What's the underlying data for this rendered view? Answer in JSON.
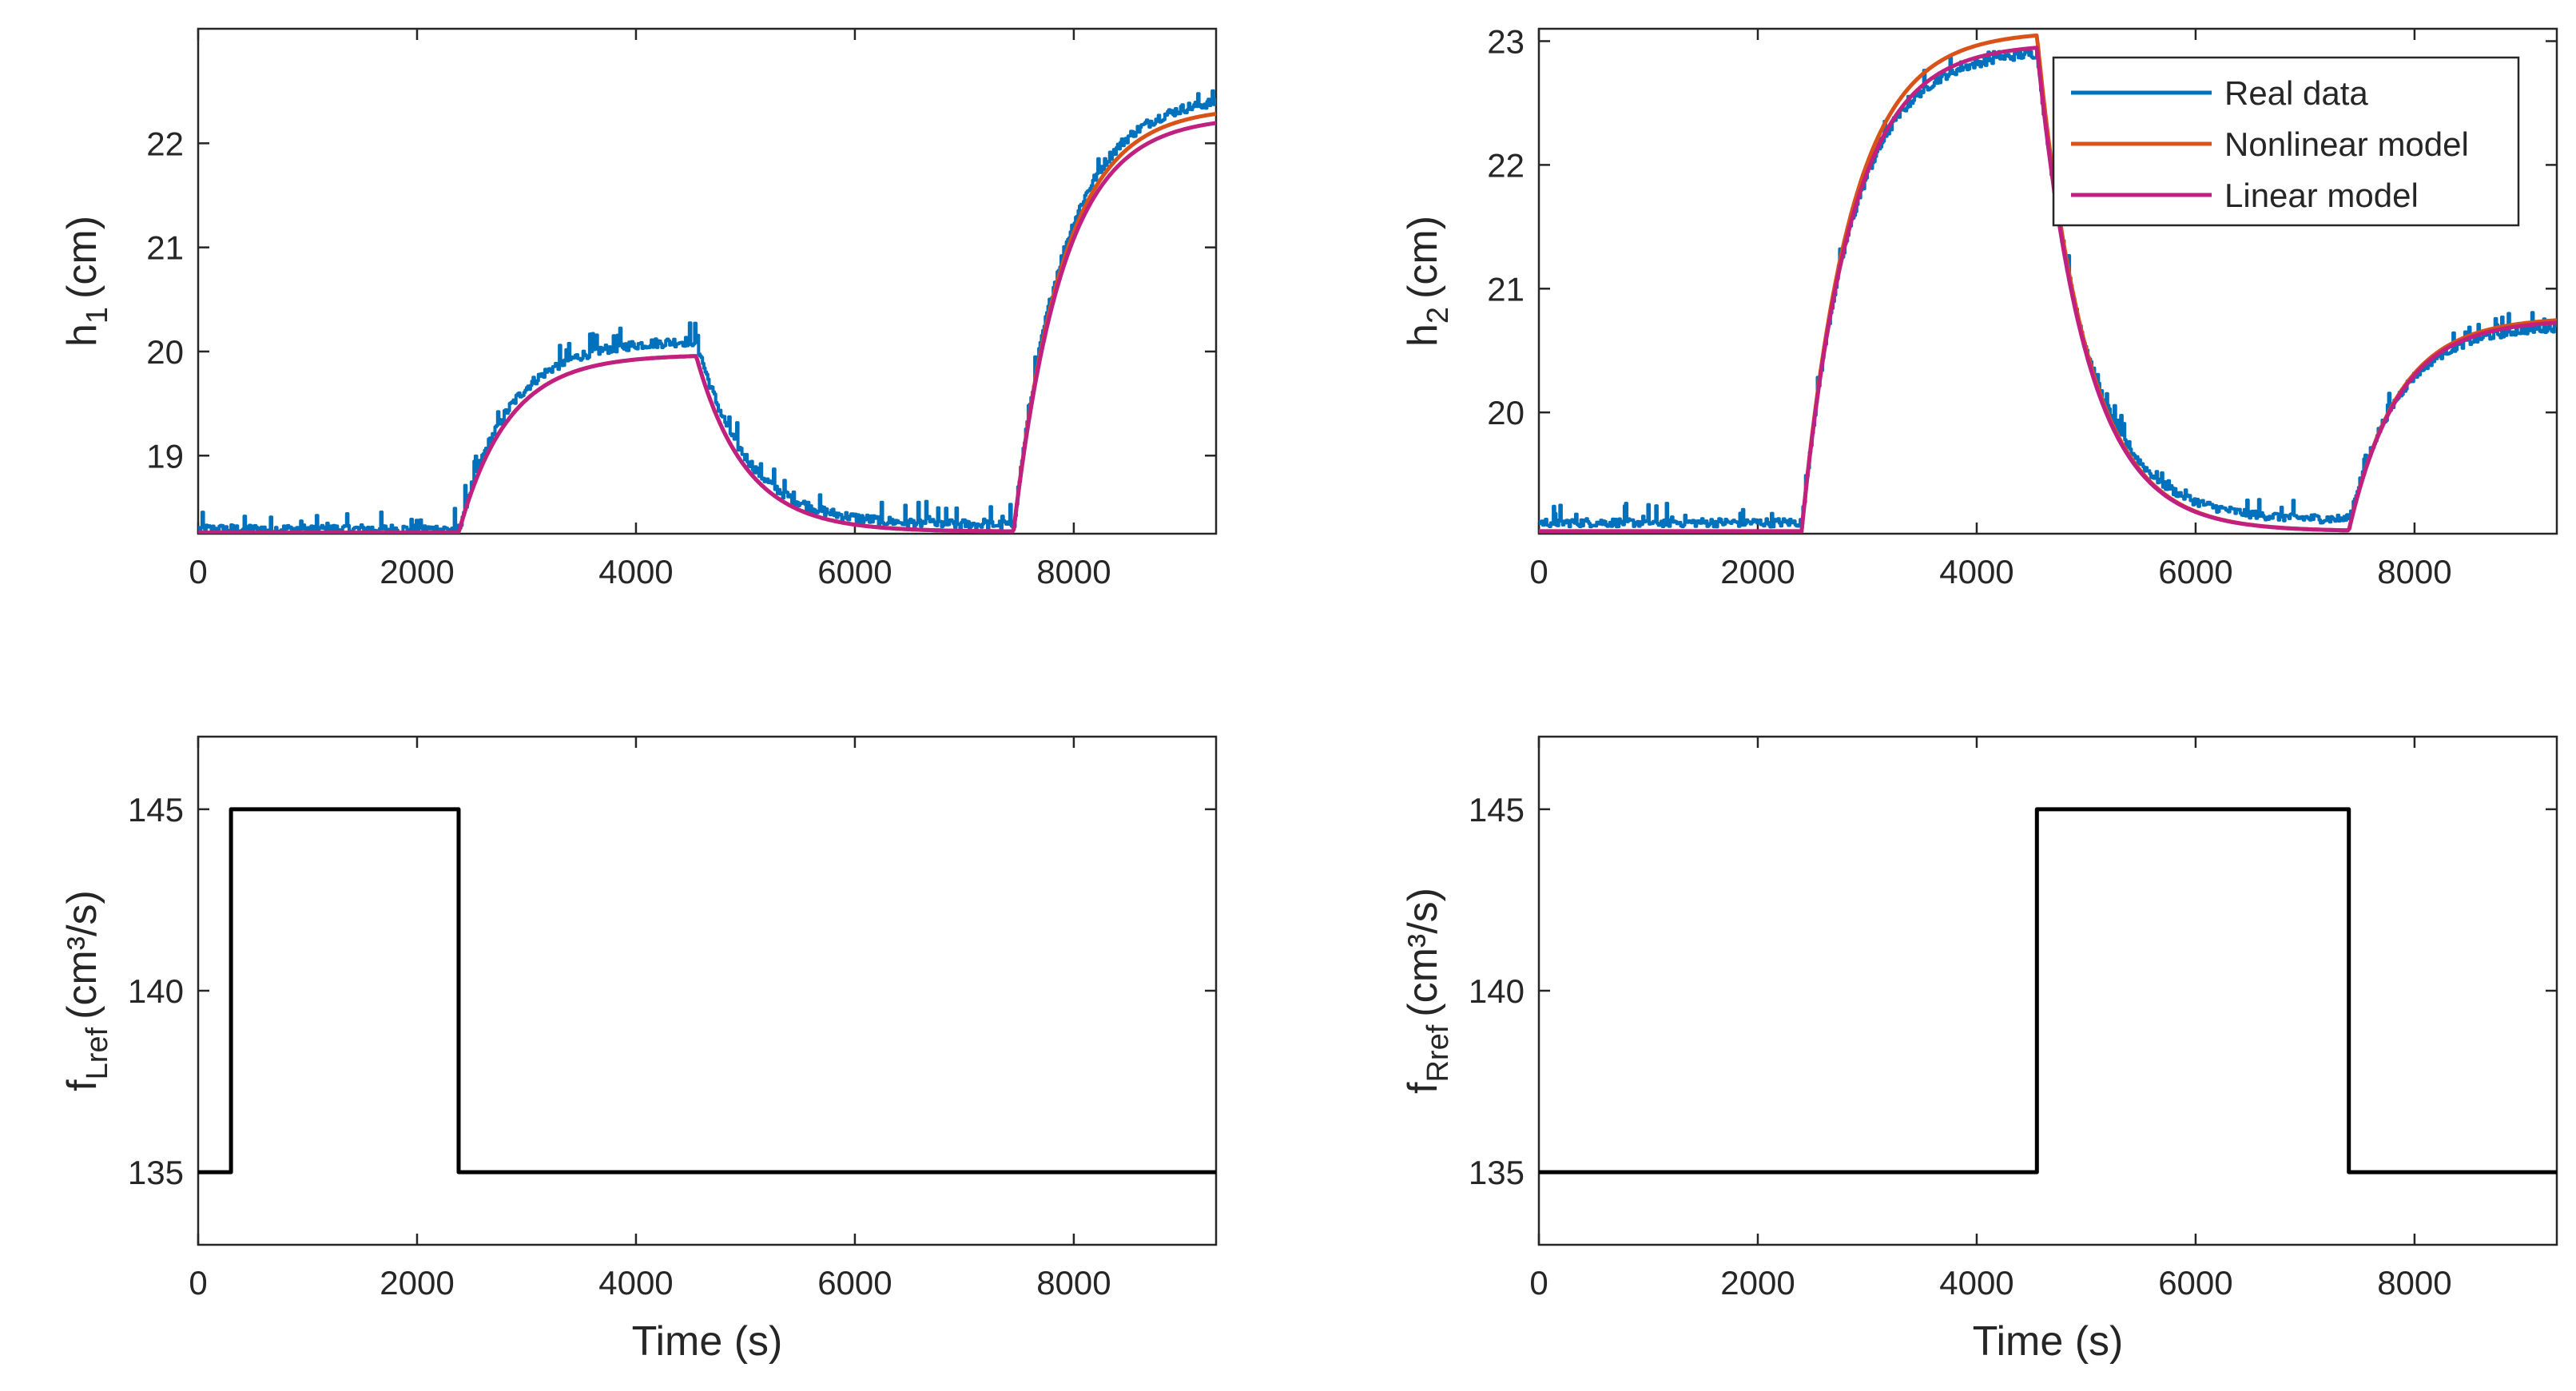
{
  "chart_data": [
    {
      "id": "h1",
      "type": "line",
      "ylabel": "h",
      "ylabel_sub": "1",
      "ylabel_unit": "(cm)",
      "xlabel": "",
      "xlim": [
        0,
        9300
      ],
      "ylim": [
        18.25,
        23.1
      ],
      "xticks": [
        0,
        2000,
        4000,
        6000,
        8000
      ],
      "yticks": [
        19,
        20,
        21,
        22
      ],
      "series": [
        {
          "name": "Real data",
          "color": "#0072BD",
          "steps": [
            [
              0,
              18.28
            ],
            [
              300,
              18.28
            ],
            [
              2380,
              20.1
            ],
            [
              4550,
              18.32
            ],
            [
              7450,
              22.45
            ]
          ],
          "noise": 0.12
        },
        {
          "name": "Nonlinear model",
          "color": "#D95319",
          "steps": [
            [
              0,
              18.26
            ],
            [
              300,
              18.26
            ],
            [
              2380,
              19.97
            ],
            [
              4550,
              18.27
            ],
            [
              7450,
              22.35
            ]
          ]
        },
        {
          "name": "Linear model",
          "color": "#C02080",
          "steps": [
            [
              0,
              18.26
            ],
            [
              300,
              18.26
            ],
            [
              2380,
              19.97
            ],
            [
              4550,
              18.27
            ],
            [
              7450,
              22.26
            ]
          ]
        }
      ]
    },
    {
      "id": "h2",
      "type": "line",
      "ylabel": "h",
      "ylabel_sub": "2",
      "ylabel_unit": "(cm)",
      "xlabel": "",
      "xlim": [
        0,
        9300
      ],
      "ylim": [
        19.02,
        23.1
      ],
      "xticks": [
        0,
        2000,
        4000,
        6000,
        8000
      ],
      "yticks": [
        20,
        21,
        22,
        23
      ],
      "legend": "top-right",
      "series": [
        {
          "name": "Real data",
          "color": "#0072BD",
          "steps": [
            [
              0,
              19.1
            ],
            [
              300,
              19.1
            ],
            [
              2400,
              22.92
            ],
            [
              4550,
              19.12
            ],
            [
              7400,
              20.7
            ]
          ],
          "noise": 0.09
        },
        {
          "name": "Nonlinear model",
          "color": "#D95319",
          "steps": [
            [
              0,
              19.04
            ],
            [
              300,
              19.04
            ],
            [
              2400,
              23.08
            ],
            [
              4550,
              19.04
            ],
            [
              7400,
              20.77
            ]
          ]
        },
        {
          "name": "Linear model",
          "color": "#C02080",
          "steps": [
            [
              0,
              19.04
            ],
            [
              300,
              19.04
            ],
            [
              2400,
              22.98
            ],
            [
              4550,
              19.04
            ],
            [
              7400,
              20.75
            ]
          ]
        }
      ]
    },
    {
      "id": "fL",
      "type": "line",
      "ylabel": "f",
      "ylabel_sub": "Lref",
      "ylabel_unit": "(cm³/s)",
      "xlabel": "Time (s)",
      "xlim": [
        0,
        9300
      ],
      "ylim": [
        133,
        147
      ],
      "xticks": [
        0,
        2000,
        4000,
        6000,
        8000
      ],
      "yticks": [
        135,
        140,
        145
      ],
      "series": [
        {
          "name": "f_Lref",
          "color": "#000000",
          "x": [
            0,
            300,
            300,
            2380,
            2380,
            9300
          ],
          "y": [
            135,
            135,
            145,
            145,
            135,
            135
          ]
        }
      ]
    },
    {
      "id": "fR",
      "type": "line",
      "ylabel": "f",
      "ylabel_sub": "Rref",
      "ylabel_unit": "(cm³/s)",
      "xlabel": "Time (s)",
      "xlim": [
        0,
        9300
      ],
      "ylim": [
        133,
        147
      ],
      "xticks": [
        0,
        2000,
        4000,
        6000,
        8000
      ],
      "yticks": [
        135,
        140,
        145
      ],
      "series": [
        {
          "name": "f_Rref",
          "color": "#000000",
          "x": [
            0,
            4550,
            4550,
            7400,
            7400,
            9300
          ],
          "y": [
            135,
            135,
            145,
            145,
            135,
            135
          ]
        }
      ]
    }
  ]
}
